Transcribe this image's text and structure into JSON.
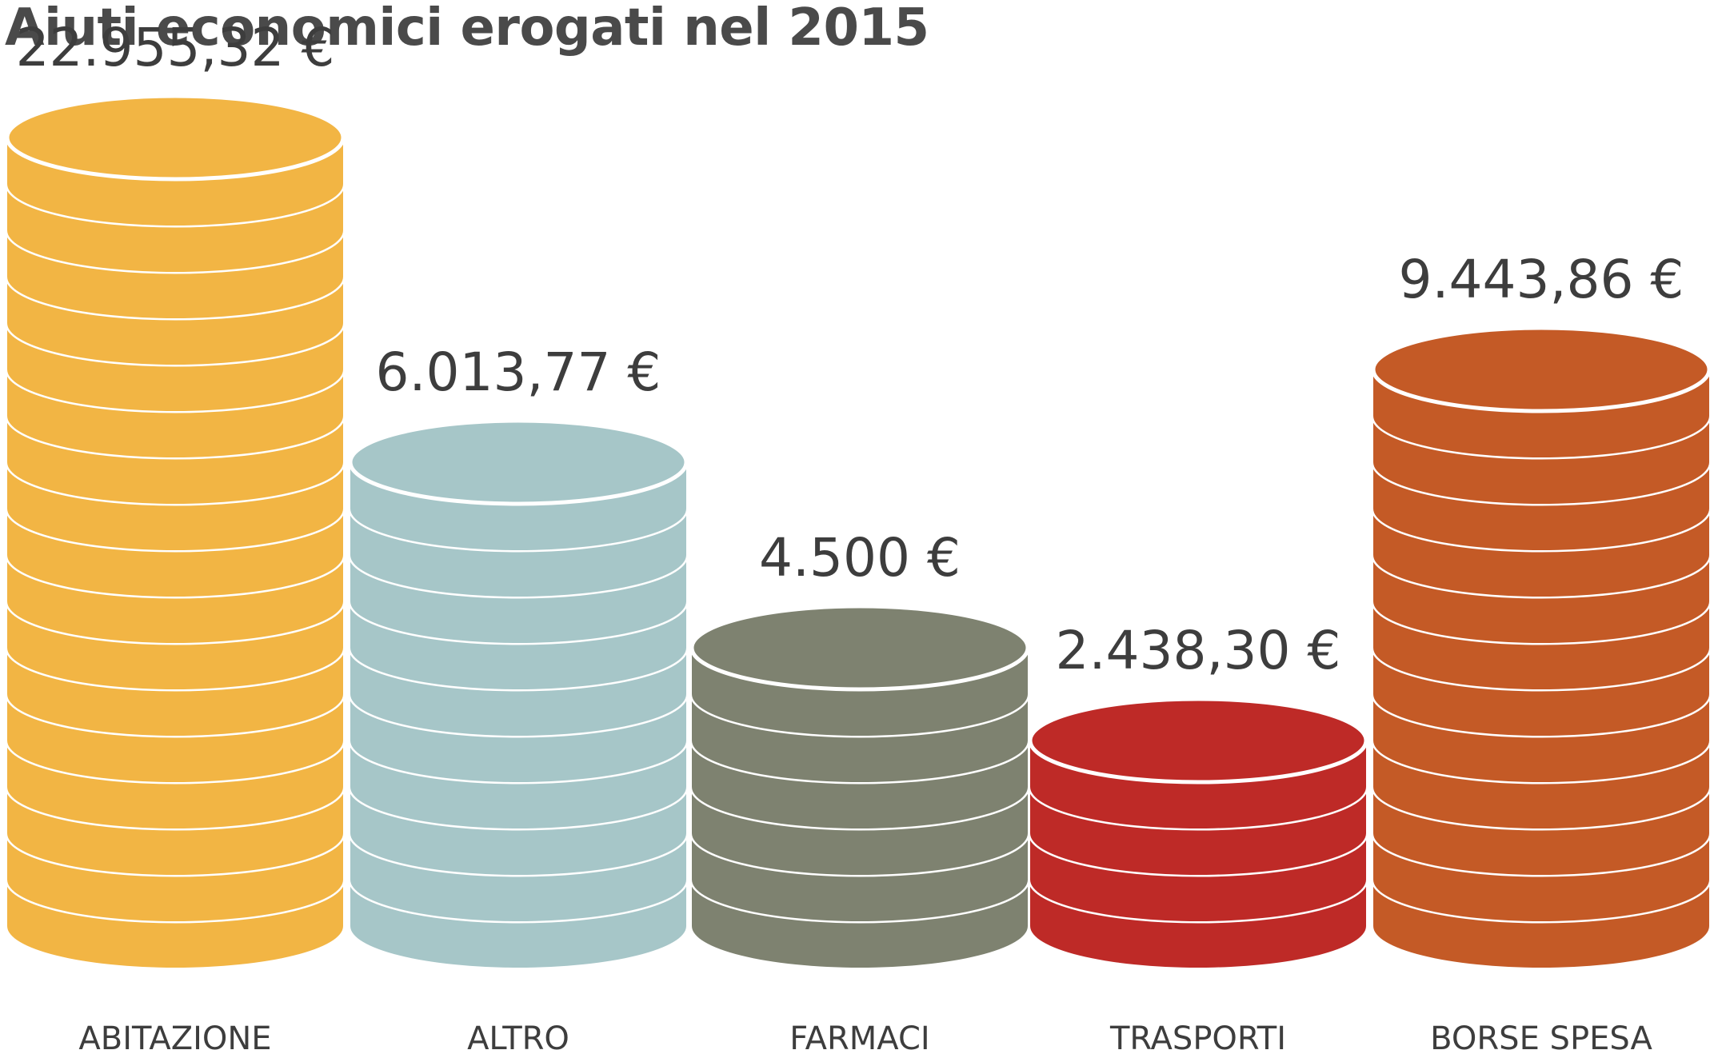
{
  "chart_data": {
    "type": "bar",
    "title": "Aiuti economici erogati nel 2015",
    "categories": [
      "ABITAZIONE",
      "ALTRO",
      "FARMACI",
      "TRASPORTI",
      "BORSE SPESA"
    ],
    "values": [
      22955.32,
      6013.77,
      4500,
      2438.3,
      9443.86
    ],
    "value_labels": [
      "22.955,32 €",
      "6.013,77 €",
      "4.500 €",
      "2.438,30 €",
      "9.443,86 €"
    ],
    "coin_counts": [
      17,
      10,
      6,
      4,
      12
    ],
    "colors": [
      "#F2B544",
      "#A6C6C8",
      "#7E8270",
      "#BE2A27",
      "#C45A26"
    ],
    "xlabel": "",
    "ylabel": ""
  }
}
